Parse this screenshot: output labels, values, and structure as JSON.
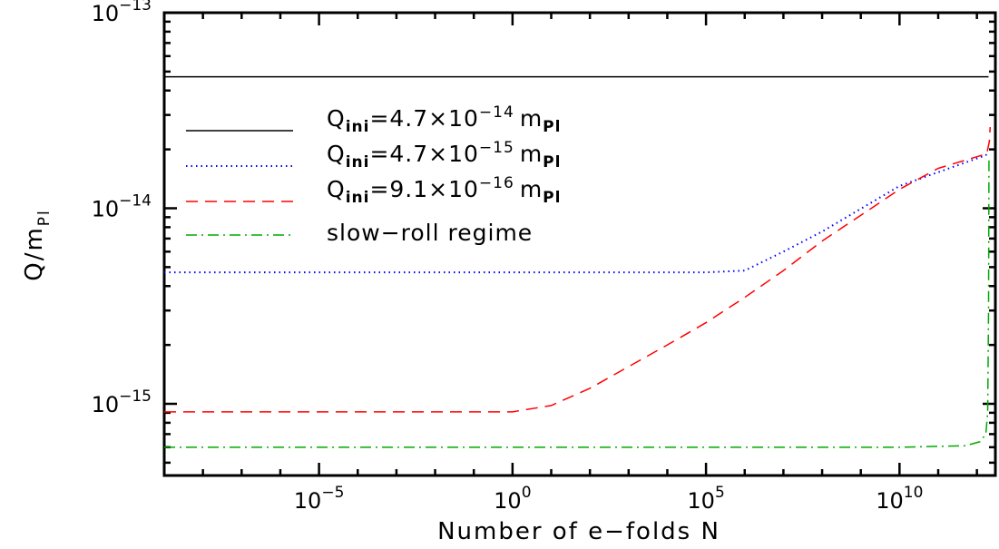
{
  "chart_data": {
    "type": "line",
    "xlabel": "Number of e−folds N",
    "ylabel_main": "Q/m",
    "ylabel_sub": "Pl",
    "xscale": "log",
    "yscale": "log",
    "xlim": [
      1e-09,
      3000000000000.0
    ],
    "ylim": [
      4.3e-16,
      1e-13
    ],
    "xticks": [
      {
        "value": 1e-05,
        "base": "10",
        "exp": "−5"
      },
      {
        "value": 1,
        "base": "10",
        "exp": "0"
      },
      {
        "value": 100000.0,
        "base": "10",
        "exp": "5"
      },
      {
        "value": 10000000000.0,
        "base": "10",
        "exp": "10"
      }
    ],
    "yticks": [
      {
        "value": 1e-13,
        "base": "10",
        "exp": "−13"
      },
      {
        "value": 1e-14,
        "base": "10",
        "exp": "−14"
      },
      {
        "value": 1e-15,
        "base": "10",
        "exp": "−15"
      }
    ],
    "legend_position": "upper-left",
    "series": [
      {
        "legend_main": "Q",
        "legend_sub": "ini",
        "legend_mid": "=4.7×10",
        "legend_exp": "−14",
        "legend_unit": "m",
        "legend_unit_sub": "Pl",
        "color": "#000000",
        "style": "solid",
        "points": [
          [
            1e-09,
            4.7e-14
          ],
          [
            2000000000000.0,
            4.7e-14
          ]
        ]
      },
      {
        "legend_main": "Q",
        "legend_sub": "ini",
        "legend_mid": "=4.7×10",
        "legend_exp": "−15",
        "legend_unit": "m",
        "legend_unit_sub": "Pl",
        "color": "#0000ff",
        "style": "dotted",
        "points": [
          [
            1e-09,
            4.7e-15
          ],
          [
            100000.0,
            4.7e-15
          ],
          [
            1000000.0,
            4.8e-15
          ],
          [
            10000000.0,
            6e-15
          ],
          [
            100000000.0,
            7.6e-15
          ],
          [
            10000000000.0,
            1.3e-14
          ],
          [
            1500000000000.0,
            1.85e-14
          ],
          [
            2000000000000.0,
            1.9e-14
          ]
        ]
      },
      {
        "legend_main": "Q",
        "legend_sub": "ini",
        "legend_mid": "=9.1×10",
        "legend_exp": "−16",
        "legend_unit": "m",
        "legend_unit_sub": "Pl",
        "color": "#ff0000",
        "style": "dashed",
        "points": [
          [
            1e-09,
            9.1e-16
          ],
          [
            1,
            9.1e-16
          ],
          [
            10,
            9.8e-16
          ],
          [
            100,
            1.2e-15
          ],
          [
            1000.0,
            1.55e-15
          ],
          [
            10000.0,
            2e-15
          ],
          [
            100000.0,
            2.6e-15
          ],
          [
            1000000.0,
            3.5e-15
          ],
          [
            10000000.0,
            4.8e-15
          ],
          [
            100000000.0,
            6.8e-15
          ],
          [
            1000000000.0,
            9.2e-15
          ],
          [
            10000000000.0,
            1.25e-14
          ],
          [
            100000000000.0,
            1.6e-14
          ],
          [
            1800000000000.0,
            1.9e-14
          ],
          [
            2100000000000.0,
            2.2e-14
          ],
          [
            2200000000000.0,
            2.6e-14
          ]
        ]
      },
      {
        "legend_main": "slow−roll regime",
        "color": "#00aa00",
        "style": "dashdot",
        "points": [
          [
            1e-09,
            6e-16
          ],
          [
            10000000000.0,
            6e-16
          ],
          [
            500000000000.0,
            6.1e-16
          ],
          [
            1200000000000.0,
            6.4e-16
          ],
          [
            1700000000000.0,
            7e-16
          ],
          [
            1900000000000.0,
            9e-16
          ],
          [
            2000000000000.0,
            3e-15
          ],
          [
            2050000000000.0,
            1.8e-14
          ]
        ]
      }
    ]
  }
}
